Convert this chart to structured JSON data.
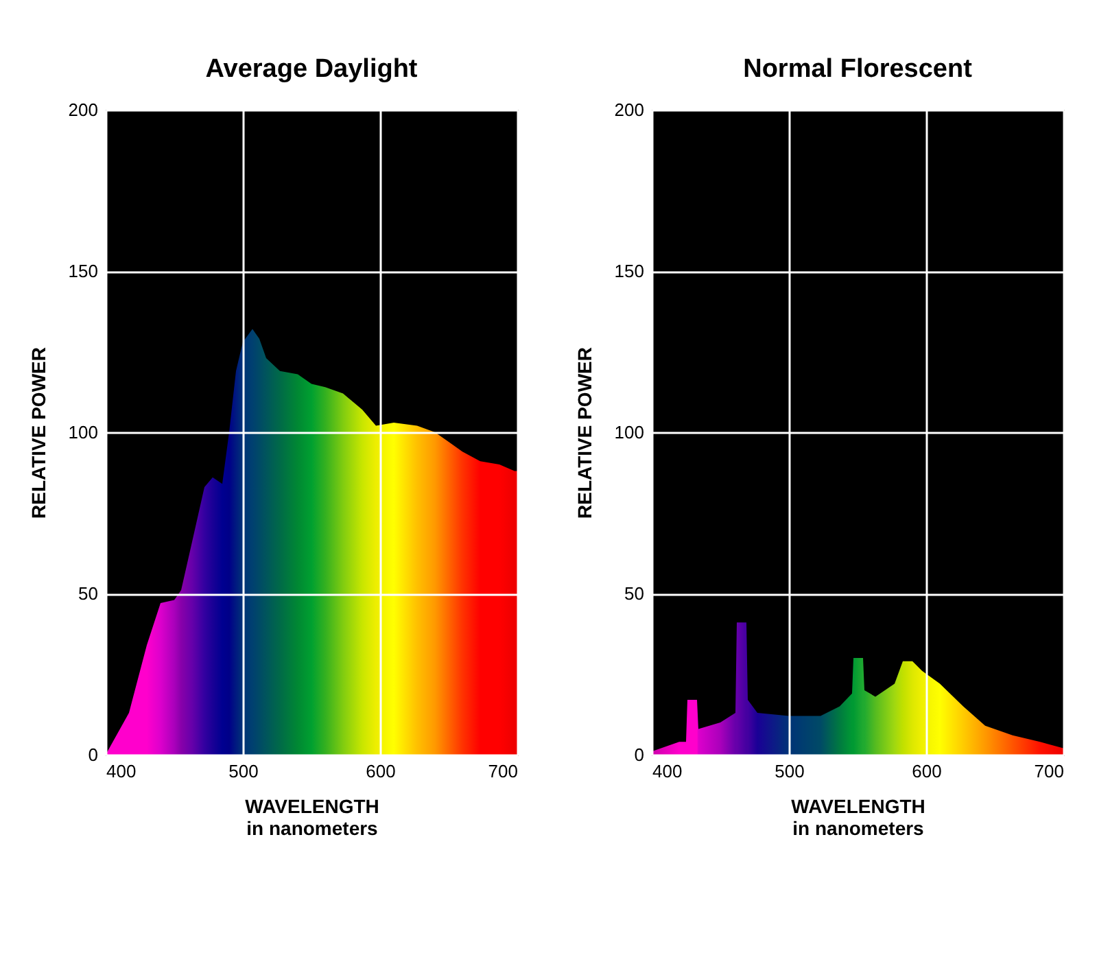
{
  "chart_data": [
    {
      "type": "area",
      "title": "Average Daylight",
      "xlabel": "WAVELENGTH\nin nanometers",
      "ylabel": "RELATIVE POWER",
      "xlim": [
        400,
        700
      ],
      "ylim": [
        0,
        200
      ],
      "xticks": [
        400,
        500,
        600,
        700
      ],
      "yticks": [
        0,
        50,
        100,
        150,
        200
      ],
      "grid": true,
      "series": [
        {
          "x": [
            400,
            417,
            430,
            440,
            450,
            455,
            463,
            472,
            478,
            485,
            490,
            495,
            500,
            507,
            512,
            517,
            527,
            540,
            550,
            560,
            573,
            587,
            597,
            610,
            627,
            640,
            650,
            660,
            673,
            687,
            698,
            700
          ],
          "values": [
            0,
            13,
            34,
            47,
            48,
            51,
            66,
            83,
            86,
            84,
            100,
            119,
            128,
            132,
            129,
            123,
            119,
            118,
            115,
            114,
            112,
            107,
            102,
            103,
            102,
            100,
            97,
            94,
            91,
            90,
            88,
            88
          ],
          "colors": [
            "#ff00cc",
            "#ff00cc",
            "#ff00cc",
            "#dd00cc",
            "#aa00bb",
            "#8800aa",
            "#6600aa",
            "#3300a0",
            "#1a0096",
            "#000090",
            "#000088",
            "#001a80",
            "#003377",
            "#004070",
            "#004a66",
            "#00555c",
            "#006a48",
            "#008833",
            "#00a030",
            "#33b020",
            "#80cc10",
            "#c8e600",
            "#eeee00",
            "#ffff00",
            "#ffc000",
            "#ff9900",
            "#ff6600",
            "#ff3300",
            "#ff0000",
            "#ff0000",
            "#ee0000",
            "#ee0000"
          ]
        }
      ]
    },
    {
      "type": "area",
      "title": "Normal Florescent",
      "xlabel": "WAVELENGTH\nin nanometers",
      "ylabel": "RELATIVE POWER",
      "xlim": [
        400,
        700
      ],
      "ylim": [
        0,
        200
      ],
      "xticks": [
        400,
        500,
        600,
        700
      ],
      "yticks": [
        0,
        50,
        100,
        150,
        200
      ],
      "grid": true,
      "series": [
        {
          "x": [
            400,
            420,
            425,
            426,
            433,
            434,
            450,
            461,
            462,
            469,
            470,
            477,
            500,
            523,
            537,
            546,
            547,
            554,
            555,
            563,
            577,
            583,
            590,
            597,
            610,
            627,
            643,
            663,
            683,
            700
          ],
          "values": [
            1,
            4,
            4,
            17,
            17,
            8,
            10,
            13,
            41,
            41,
            17,
            13,
            12,
            12,
            15,
            19,
            30,
            30,
            20,
            18,
            22,
            29,
            29,
            26,
            22,
            15,
            9,
            6,
            4,
            2
          ],
          "colors": [
            "#cc00aa",
            "#ff00cc",
            "#ff00cc",
            "#ff00cc",
            "#ff00cc",
            "#dd00cc",
            "#aa00bb",
            "#6600aa",
            "#6600aa",
            "#4400a0",
            "#4400a0",
            "#1a0096",
            "#003377",
            "#004a66",
            "#007a40",
            "#009933",
            "#009933",
            "#20aa30",
            "#20aa30",
            "#55bb20",
            "#a0d810",
            "#c0e000",
            "#dde800",
            "#f0f000",
            "#ffff00",
            "#ffcc00",
            "#ff9900",
            "#ff5500",
            "#ff1100",
            "#ee0000"
          ]
        }
      ]
    }
  ]
}
